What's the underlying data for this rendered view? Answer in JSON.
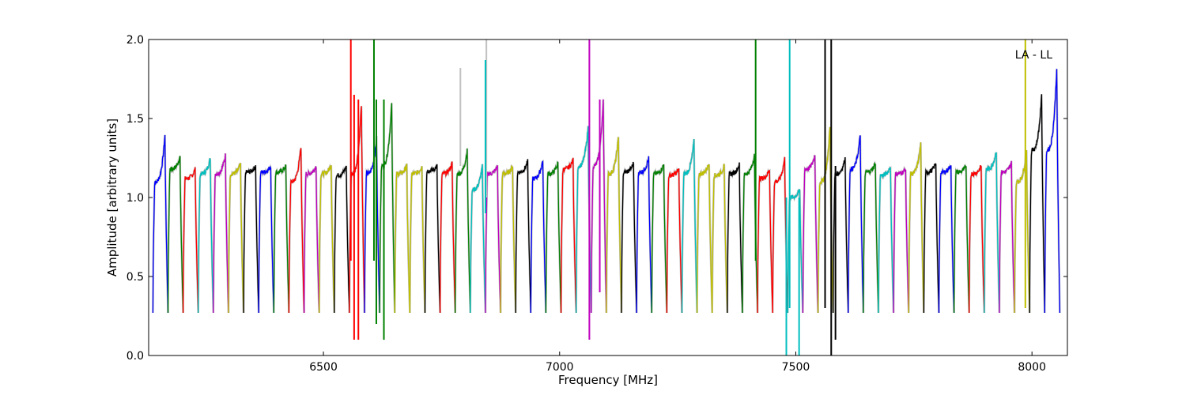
{
  "chart_data": {
    "type": "line",
    "title": "",
    "xlabel": "Frequency [MHz]",
    "ylabel": "Amplitude [arbitrary units]",
    "annotation": "LA - LL",
    "xlim": [
      6130,
      8075
    ],
    "ylim": [
      0.0,
      2.0
    ],
    "xticks": [
      6500,
      7000,
      7500,
      8000
    ],
    "xtick_labels": [
      "6500",
      "7000",
      "7500",
      "8000"
    ],
    "yticks": [
      0.0,
      0.5,
      1.0,
      1.5,
      2.0
    ],
    "ytick_labels": [
      "0.0",
      "0.5",
      "1.0",
      "1.5",
      "2.0"
    ],
    "grid": false,
    "legend": "none",
    "band_width_mhz": 32,
    "colors": [
      "#0000ff",
      "#008000",
      "#ff0000",
      "#00bfbf",
      "#bf00bf",
      "#bfbf00",
      "#000000"
    ],
    "background_color": "#c0c0c0",
    "bands": [
      {
        "start": 6139,
        "peak": 1.4,
        "level": 1.1,
        "color": "#0000ff"
      },
      {
        "start": 6171,
        "peak": 1.26,
        "level": 1.18,
        "color": "#008000"
      },
      {
        "start": 6203,
        "peak": 1.18,
        "level": 1.12,
        "color": "#ff0000"
      },
      {
        "start": 6235,
        "peak": 1.25,
        "level": 1.15,
        "color": "#00bfbf"
      },
      {
        "start": 6267,
        "peak": 1.27,
        "level": 1.15,
        "color": "#bf00bf"
      },
      {
        "start": 6299,
        "peak": 1.21,
        "level": 1.15,
        "color": "#bfbf00"
      },
      {
        "start": 6331,
        "peak": 1.2,
        "level": 1.16,
        "color": "#000000"
      },
      {
        "start": 6363,
        "peak": 1.2,
        "level": 1.16,
        "color": "#0000ff"
      },
      {
        "start": 6395,
        "peak": 1.2,
        "level": 1.16,
        "color": "#008000"
      },
      {
        "start": 6427,
        "peak": 1.33,
        "level": 1.1,
        "color": "#ff0000"
      },
      {
        "start": 6459,
        "peak": 1.2,
        "level": 1.15,
        "color": "#bf00bf"
      },
      {
        "start": 6491,
        "peak": 1.21,
        "level": 1.15,
        "color": "#bfbf00"
      },
      {
        "start": 6523,
        "peak": 1.2,
        "level": 1.14,
        "color": "#000000"
      },
      {
        "start": 6555,
        "peak": 1.6,
        "level": 1.15,
        "color": "#ff0000"
      },
      {
        "start": 6587,
        "peak": 1.38,
        "level": 1.15,
        "color": "#0000ff"
      },
      {
        "start": 6619,
        "peak": 1.6,
        "level": 1.2,
        "color": "#008000"
      },
      {
        "start": 6651,
        "peak": 1.2,
        "level": 1.15,
        "color": "#bfbf00"
      },
      {
        "start": 6683,
        "peak": 1.2,
        "level": 1.15,
        "color": "#bfbf00"
      },
      {
        "start": 6715,
        "peak": 1.2,
        "level": 1.17,
        "color": "#000000"
      },
      {
        "start": 6747,
        "peak": 1.22,
        "level": 1.15,
        "color": "#ff0000"
      },
      {
        "start": 6779,
        "peak": 1.3,
        "level": 1.15,
        "color": "#008000"
      },
      {
        "start": 6811,
        "peak": 1.2,
        "level": 1.05,
        "color": "#00bfbf"
      },
      {
        "start": 6843,
        "peak": 1.2,
        "level": 1.15,
        "color": "#bf00bf"
      },
      {
        "start": 6875,
        "peak": 1.2,
        "level": 1.15,
        "color": "#bfbf00"
      },
      {
        "start": 6907,
        "peak": 1.23,
        "level": 1.16,
        "color": "#000000"
      },
      {
        "start": 6939,
        "peak": 1.24,
        "level": 1.12,
        "color": "#0000ff"
      },
      {
        "start": 6971,
        "peak": 1.22,
        "level": 1.15,
        "color": "#008000"
      },
      {
        "start": 7003,
        "peak": 1.24,
        "level": 1.18,
        "color": "#ff0000"
      },
      {
        "start": 7035,
        "peak": 1.45,
        "level": 1.2,
        "color": "#00bfbf"
      },
      {
        "start": 7067,
        "peak": 1.62,
        "level": 1.2,
        "color": "#bf00bf"
      },
      {
        "start": 7099,
        "peak": 1.38,
        "level": 1.15,
        "color": "#bfbf00"
      },
      {
        "start": 7131,
        "peak": 1.22,
        "level": 1.16,
        "color": "#000000"
      },
      {
        "start": 7163,
        "peak": 1.25,
        "level": 1.16,
        "color": "#0000ff"
      },
      {
        "start": 7195,
        "peak": 1.21,
        "level": 1.15,
        "color": "#008000"
      },
      {
        "start": 7227,
        "peak": 1.18,
        "level": 1.14,
        "color": "#ff0000"
      },
      {
        "start": 7259,
        "peak": 1.36,
        "level": 1.15,
        "color": "#00bfbf"
      },
      {
        "start": 7291,
        "peak": 1.22,
        "level": 1.15,
        "color": "#bfbf00"
      },
      {
        "start": 7323,
        "peak": 1.2,
        "level": 1.14,
        "color": "#bfbf00"
      },
      {
        "start": 7355,
        "peak": 1.21,
        "level": 1.15,
        "color": "#000000"
      },
      {
        "start": 7387,
        "peak": 1.27,
        "level": 1.15,
        "color": "#008000"
      },
      {
        "start": 7419,
        "peak": 1.18,
        "level": 1.12,
        "color": "#ff0000"
      },
      {
        "start": 7451,
        "peak": 1.25,
        "level": 1.1,
        "color": "#ff0000"
      },
      {
        "start": 7483,
        "peak": 1.05,
        "level": 1.0,
        "color": "#00bfbf"
      },
      {
        "start": 7515,
        "peak": 1.27,
        "level": 1.18,
        "color": "#bf00bf"
      },
      {
        "start": 7547,
        "peak": 1.45,
        "level": 1.1,
        "color": "#bfbf00"
      },
      {
        "start": 7579,
        "peak": 1.25,
        "level": 1.15,
        "color": "#000000"
      },
      {
        "start": 7611,
        "peak": 1.4,
        "level": 1.18,
        "color": "#0000ff"
      },
      {
        "start": 7643,
        "peak": 1.22,
        "level": 1.16,
        "color": "#008000"
      },
      {
        "start": 7675,
        "peak": 1.2,
        "level": 1.14,
        "color": "#00bfbf"
      },
      {
        "start": 7707,
        "peak": 1.18,
        "level": 1.15,
        "color": "#bf00bf"
      },
      {
        "start": 7739,
        "peak": 1.34,
        "level": 1.15,
        "color": "#bfbf00"
      },
      {
        "start": 7771,
        "peak": 1.22,
        "level": 1.16,
        "color": "#000000"
      },
      {
        "start": 7803,
        "peak": 1.21,
        "level": 1.16,
        "color": "#0000ff"
      },
      {
        "start": 7835,
        "peak": 1.2,
        "level": 1.16,
        "color": "#008000"
      },
      {
        "start": 7867,
        "peak": 1.2,
        "level": 1.15,
        "color": "#ff0000"
      },
      {
        "start": 7899,
        "peak": 1.3,
        "level": 1.18,
        "color": "#00bfbf"
      },
      {
        "start": 7931,
        "peak": 1.22,
        "level": 1.16,
        "color": "#bf00bf"
      },
      {
        "start": 7963,
        "peak": 1.3,
        "level": 1.1,
        "color": "#bfbf00"
      },
      {
        "start": 7995,
        "peak": 1.65,
        "level": 1.3,
        "color": "#000000"
      },
      {
        "start": 8027,
        "peak": 1.83,
        "level": 1.3,
        "color": "#0000ff"
      }
    ],
    "spikes": [
      {
        "x": 6558,
        "y0": 0.6,
        "y1": 2.0,
        "color": "#ff0000"
      },
      {
        "x": 6565,
        "y0": 0.1,
        "y1": 1.65,
        "color": "#ff0000"
      },
      {
        "x": 6574,
        "y0": 0.1,
        "y1": 1.62,
        "color": "#ff0000"
      },
      {
        "x": 6607,
        "y0": 0.6,
        "y1": 2.0,
        "color": "#008000"
      },
      {
        "x": 6612,
        "y0": 0.2,
        "y1": 1.62,
        "color": "#008000"
      },
      {
        "x": 6628,
        "y0": 0.1,
        "y1": 1.62,
        "color": "#008000"
      },
      {
        "x": 6790,
        "y0": 1.2,
        "y1": 1.82,
        "color": "#c0c0c0"
      },
      {
        "x": 6845,
        "y0": 1.0,
        "y1": 2.0,
        "color": "#c0c0c0"
      },
      {
        "x": 6843,
        "y0": 0.9,
        "y1": 1.87,
        "color": "#00bfbf"
      },
      {
        "x": 7063,
        "y0": 0.1,
        "y1": 2.0,
        "color": "#bf00bf"
      },
      {
        "x": 7085,
        "y0": 0.4,
        "y1": 1.62,
        "color": "#bf00bf"
      },
      {
        "x": 7415,
        "y0": 0.6,
        "y1": 2.0,
        "color": "#008000"
      },
      {
        "x": 7480,
        "y0": 0.0,
        "y1": 1.0,
        "color": "#00bfbf"
      },
      {
        "x": 7487,
        "y0": 0.3,
        "y1": 2.0,
        "color": "#00bfbf"
      },
      {
        "x": 7507,
        "y0": 0.0,
        "y1": 1.0,
        "color": "#00bfbf"
      },
      {
        "x": 7562,
        "y0": 0.3,
        "y1": 2.0,
        "color": "#000000"
      },
      {
        "x": 7575,
        "y0": 0.0,
        "y1": 2.0,
        "color": "#000000"
      },
      {
        "x": 7584,
        "y0": 0.1,
        "y1": 1.2,
        "color": "#000000"
      },
      {
        "x": 7986,
        "y0": 0.3,
        "y1": 2.0,
        "color": "#bfbf00"
      }
    ]
  }
}
